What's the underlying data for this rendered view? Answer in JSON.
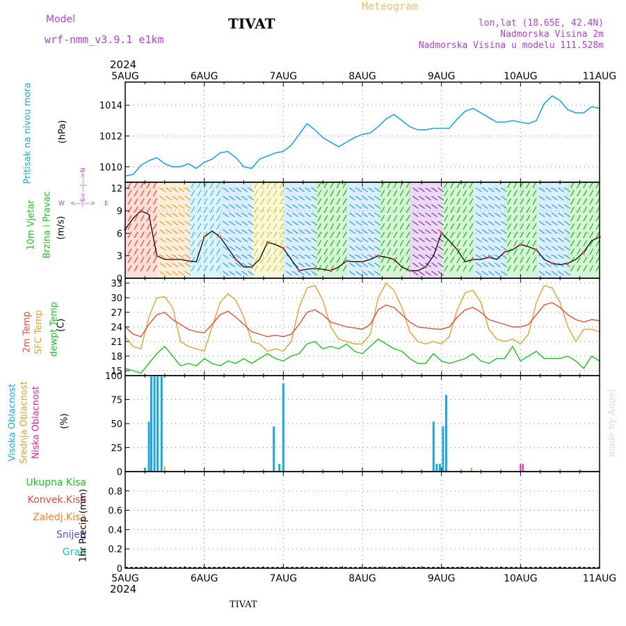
{
  "header": {
    "model_label": "Model",
    "model_name": "wrf-nmm_v3.9.1  e1km",
    "station": "TIVAT",
    "meteogram": "Meteogram",
    "lonlat": "lon,lat (18.65E, 42.4N)",
    "altitude": "Nadmorska Visina 2m",
    "model_altitude": "Nadmorska Visina u modelu 111.528m",
    "year_top": "2024",
    "year_bottom": "2024",
    "footer_station": "TIVAT",
    "watermark": "made by Angel"
  },
  "colors": {
    "pressure": "#1aa7e0",
    "temp2m": "#e84a3a",
    "sfc": "#e0a030",
    "dewpt": "#20c020",
    "high_cloud": "#1aa7e0",
    "mid_cloud": "#e0a030",
    "low_cloud": "#e020a0",
    "purple": "#b040d0"
  },
  "chart_data": [
    {
      "type": "line",
      "panel": "pressure",
      "ylabel_name": "Pritisak na nivou mora",
      "ylabel_unit": "(hPa)",
      "categories": [
        "5AUG",
        "6AUG",
        "7AUG",
        "8AUG",
        "9AUG",
        "10AUG",
        "11AUG"
      ],
      "ylim": [
        1009,
        1015.5
      ],
      "yticks": [
        "1010",
        "1012",
        "1014"
      ],
      "x": [
        0,
        0.1,
        0.2,
        0.3,
        0.4,
        0.5,
        0.6,
        0.7,
        0.8,
        0.9,
        1.0,
        1.1,
        1.2,
        1.3,
        1.4,
        1.5,
        1.6,
        1.7,
        1.8,
        1.9,
        2.0,
        2.1,
        2.2,
        2.3,
        2.4,
        2.5,
        2.6,
        2.7,
        2.8,
        2.9,
        3.0,
        3.1,
        3.2,
        3.3,
        3.4,
        3.5,
        3.6,
        3.7,
        3.8,
        3.9,
        4.0,
        4.1,
        4.2,
        4.3,
        4.4,
        4.5,
        4.6,
        4.7,
        4.8,
        4.9,
        5.0,
        5.1,
        5.2,
        5.3,
        5.4,
        5.5,
        5.6,
        5.7,
        5.8,
        5.9,
        6.0
      ],
      "series": [
        {
          "values": [
            1009.4,
            1009.5,
            1010.1,
            1010.4,
            1010.6,
            1010.2,
            1010.0,
            1010.0,
            1010.2,
            1009.9,
            1010.3,
            1010.5,
            1010.9,
            1011.0,
            1010.6,
            1010.0,
            1009.9,
            1010.5,
            1010.7,
            1010.9,
            1011.0,
            1011.4,
            1012.1,
            1012.8,
            1012.4,
            1011.9,
            1011.6,
            1011.3,
            1011.6,
            1011.9,
            1012.1,
            1012.2,
            1012.6,
            1013.1,
            1013.4,
            1013.0,
            1012.6,
            1012.4,
            1012.4,
            1012.5,
            1012.5,
            1012.5,
            1013.1,
            1013.6,
            1013.8,
            1013.5,
            1013.2,
            1012.9,
            1012.9,
            1013.0,
            1012.9,
            1012.8,
            1013.0,
            1014.1,
            1014.6,
            1014.3,
            1013.7,
            1013.5,
            1013.5,
            1013.9,
            1013.8
          ]
        }
      ]
    },
    {
      "type": "line",
      "panel": "wind",
      "ylabel_name": "10m Vjetar",
      "ylabel_sub": "Brzina i Pravac",
      "ylabel_unit": "(m/s)",
      "compass": {
        "n": "N",
        "w": "W",
        "e": "E",
        "s": "S"
      },
      "ylim": [
        0,
        12.8
      ],
      "yticks": [
        "0",
        "3",
        "6",
        "9",
        "12"
      ],
      "x": [
        0,
        0.1,
        0.2,
        0.3,
        0.4,
        0.5,
        0.6,
        0.7,
        0.8,
        0.9,
        1.0,
        1.1,
        1.2,
        1.3,
        1.4,
        1.5,
        1.6,
        1.7,
        1.8,
        1.9,
        2.0,
        2.1,
        2.2,
        2.3,
        2.4,
        2.5,
        2.6,
        2.7,
        2.8,
        2.9,
        3.0,
        3.1,
        3.2,
        3.3,
        3.4,
        3.5,
        3.6,
        3.7,
        3.8,
        3.9,
        4.0,
        4.1,
        4.2,
        4.3,
        4.4,
        4.5,
        4.6,
        4.7,
        4.8,
        4.9,
        5.0,
        5.1,
        5.2,
        5.3,
        5.4,
        5.5,
        5.6,
        5.7,
        5.8,
        5.9,
        6.0
      ],
      "series": [
        {
          "values": [
            6.5,
            8.0,
            9.0,
            8.5,
            3.0,
            2.5,
            2.5,
            2.5,
            2.3,
            2.2,
            5.5,
            6.3,
            5.5,
            4.0,
            2.5,
            1.5,
            1.5,
            2.5,
            4.8,
            4.5,
            4.0,
            2.5,
            1.0,
            1.2,
            1.3,
            1.2,
            1.0,
            1.5,
            2.3,
            2.2,
            2.2,
            2.5,
            3.0,
            2.8,
            2.5,
            1.5,
            1.0,
            1.0,
            1.5,
            3.0,
            6.0,
            5.0,
            3.8,
            2.2,
            2.5,
            2.5,
            2.8,
            2.5,
            3.5,
            3.8,
            4.5,
            4.2,
            3.8,
            2.5,
            2.0,
            1.8,
            2.0,
            2.5,
            3.5,
            5.0,
            5.5
          ]
        }
      ],
      "band_colors": [
        "#f05030",
        "#f0a030",
        "#40c0f0",
        "#30a0f0",
        "#d8d030",
        "#30a0f0",
        "#20c020",
        "#30a0f0",
        "#20c020",
        "#9030c0",
        "#20c020",
        "#30a0f0",
        "#20c020",
        "#30a0f0",
        "#20c020"
      ]
    },
    {
      "type": "line",
      "panel": "temperature",
      "ylabel_name1": "2m Temp",
      "ylabel_name2": "SFC Temp",
      "ylabel_name3": "dewpt Temp",
      "ylabel_unit": "(C)",
      "ylim": [
        14,
        34
      ],
      "yticks": [
        "15",
        "18",
        "21",
        "24",
        "27",
        "30",
        "33"
      ],
      "x": [
        0,
        0.1,
        0.2,
        0.3,
        0.4,
        0.5,
        0.6,
        0.7,
        0.8,
        0.9,
        1.0,
        1.1,
        1.2,
        1.3,
        1.4,
        1.5,
        1.6,
        1.7,
        1.8,
        1.9,
        2.0,
        2.1,
        2.2,
        2.3,
        2.4,
        2.5,
        2.6,
        2.7,
        2.8,
        2.9,
        3.0,
        3.1,
        3.2,
        3.3,
        3.4,
        3.5,
        3.6,
        3.7,
        3.8,
        3.9,
        4.0,
        4.1,
        4.2,
        4.3,
        4.4,
        4.5,
        4.6,
        4.7,
        4.8,
        4.9,
        5.0,
        5.1,
        5.2,
        5.3,
        5.4,
        5.5,
        5.6,
        5.7,
        5.8,
        5.9,
        6.0
      ],
      "series": [
        {
          "name": "2m Temp",
          "values": [
            24.0,
            22.5,
            22.0,
            24.5,
            26.5,
            27.0,
            25.5,
            24.5,
            23.5,
            23.0,
            22.8,
            24.5,
            26.5,
            27.2,
            26.0,
            24.5,
            23.0,
            22.5,
            22.0,
            22.3,
            22.0,
            22.5,
            24.5,
            27.0,
            27.5,
            26.5,
            25.0,
            24.5,
            24.0,
            23.8,
            23.5,
            24.5,
            27.5,
            28.5,
            28.0,
            26.5,
            25.0,
            24.0,
            23.8,
            23.6,
            23.5,
            24.0,
            26.0,
            27.5,
            28.0,
            27.0,
            25.5,
            25.0,
            24.5,
            24.0,
            24.0,
            24.5,
            26.5,
            28.5,
            29.0,
            28.0,
            26.5,
            25.5,
            25.0,
            25.5,
            25.3
          ]
        },
        {
          "name": "SFC Temp",
          "values": [
            22.0,
            20.0,
            19.5,
            26.0,
            30.0,
            30.2,
            28.0,
            21.0,
            20.0,
            19.5,
            19.0,
            24.0,
            29.0,
            30.8,
            29.5,
            26.0,
            21.0,
            20.5,
            19.0,
            19.5,
            19.0,
            21.0,
            28.0,
            32.0,
            32.5,
            29.5,
            24.0,
            21.5,
            21.0,
            20.5,
            20.5,
            22.5,
            30.0,
            33.0,
            31.5,
            28.0,
            23.0,
            21.0,
            20.5,
            21.0,
            20.5,
            22.0,
            27.5,
            31.0,
            31.5,
            29.0,
            23.5,
            21.5,
            21.0,
            21.5,
            20.5,
            22.5,
            29.0,
            32.5,
            32.0,
            29.0,
            24.0,
            21.0,
            23.5,
            23.5,
            23.0
          ]
        },
        {
          "name": "dewpt Temp",
          "values": [
            15.5,
            15.0,
            14.5,
            16.5,
            18.5,
            20.0,
            18.0,
            16.0,
            16.5,
            16.0,
            17.5,
            16.5,
            16.0,
            17.0,
            16.5,
            17.5,
            16.5,
            17.5,
            18.5,
            17.5,
            17.0,
            18.0,
            18.5,
            20.5,
            21.0,
            19.5,
            20.0,
            19.5,
            20.5,
            19.0,
            18.5,
            20.0,
            21.5,
            20.5,
            19.5,
            19.0,
            17.5,
            16.5,
            16.5,
            18.5,
            17.0,
            16.5,
            17.0,
            17.5,
            18.5,
            17.0,
            16.5,
            17.5,
            17.5,
            20.0,
            17.0,
            18.0,
            19.0,
            17.5,
            17.5,
            17.5,
            18.0,
            17.0,
            15.5,
            18.0,
            17.0
          ]
        }
      ]
    },
    {
      "type": "bar",
      "panel": "clouds",
      "ylabel_name1": "Visoka Oblacnost",
      "ylabel_name2": "Srednja Oblacnost",
      "ylabel_name3": "Niska Oblacnost",
      "ylabel_unit": "(%)",
      "ylim": [
        0,
        100
      ],
      "yticks": [
        "0",
        "25",
        "50",
        "75",
        "100"
      ],
      "high_x": [
        0.25,
        0.3,
        0.33,
        0.37,
        0.41,
        0.46,
        1.88,
        1.95,
        2.0,
        3.9,
        3.94,
        3.98,
        4.02,
        4.06,
        4.1
      ],
      "high_values": [
        4,
        52,
        99,
        99,
        99,
        99,
        47,
        8,
        92,
        52,
        8,
        8,
        47,
        80,
        0
      ],
      "mid_x": [
        0.5,
        4.38
      ],
      "mid_values": [
        5,
        4
      ],
      "low_x": [
        5.0,
        5.03
      ],
      "low_values": [
        8,
        8
      ]
    },
    {
      "type": "line",
      "panel": "precip",
      "ylabel_names": [
        "Ukupna Kisa",
        "Konvek.Kisa",
        "Zaledj.Kisa",
        "Snijeg",
        "Grad"
      ],
      "ylabel_name_colors": [
        "#20c020",
        "#e84a3a",
        "#f08030",
        "#5050e0",
        "#20c0b0"
      ],
      "ylabel_unit": "1hr Precip (mm)",
      "ylim": [
        0,
        1
      ],
      "yticks": [
        "0",
        "0.2",
        "0.4",
        "0.6",
        "0.8"
      ],
      "series": [
        {
          "values": [
            0,
            0,
            0,
            0,
            0,
            0,
            0
          ]
        }
      ]
    }
  ]
}
